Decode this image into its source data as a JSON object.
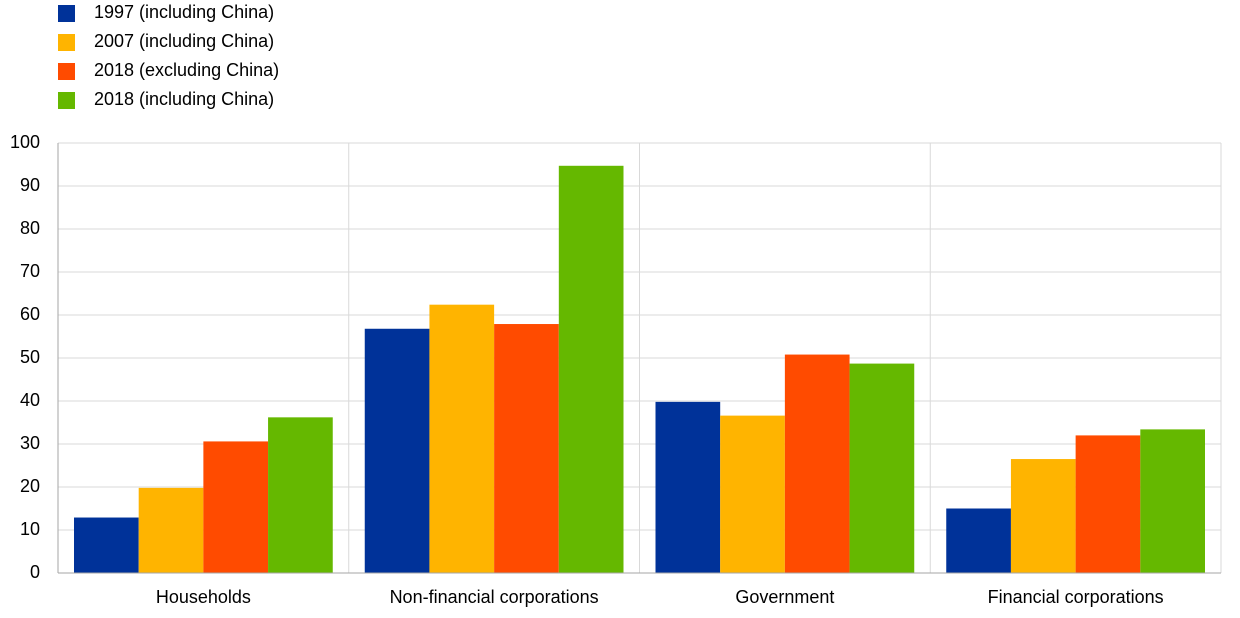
{
  "chart_data": {
    "type": "bar",
    "categories": [
      "Households",
      "Non-financial corporations",
      "Government",
      "Financial corporations"
    ],
    "series": [
      {
        "name": "1997 (including China)",
        "color": "#003299",
        "values": [
          12.9,
          56.8,
          39.8,
          15.0
        ]
      },
      {
        "name": "2007 (including China)",
        "color": "#FFB400",
        "values": [
          19.8,
          62.4,
          36.6,
          26.5
        ]
      },
      {
        "name": "2018 (excluding China)",
        "color": "#FF4B00",
        "values": [
          30.6,
          57.9,
          50.8,
          32.0
        ]
      },
      {
        "name": "2018 (including China)",
        "color": "#65B800",
        "values": [
          36.2,
          94.7,
          48.7,
          33.4
        ]
      }
    ],
    "ylim": [
      0,
      100
    ],
    "yticks": [
      0,
      10,
      20,
      30,
      40,
      50,
      60,
      70,
      80,
      90,
      100
    ],
    "grid": true,
    "legend": "top-left"
  }
}
